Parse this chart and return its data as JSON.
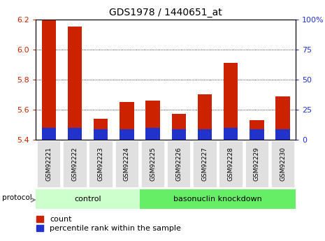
{
  "title": "GDS1978 / 1440651_at",
  "categories": [
    "GSM92221",
    "GSM92222",
    "GSM92223",
    "GSM92224",
    "GSM92225",
    "GSM92226",
    "GSM92227",
    "GSM92228",
    "GSM92229",
    "GSM92230"
  ],
  "count_values": [
    6.2,
    6.15,
    5.54,
    5.65,
    5.66,
    5.57,
    5.7,
    5.91,
    5.53,
    5.69
  ],
  "percentile_values": [
    10,
    10,
    9,
    9,
    10,
    9,
    9,
    10,
    9,
    9
  ],
  "ylim_left": [
    5.4,
    6.2
  ],
  "ylim_right": [
    0,
    100
  ],
  "yticks_left": [
    5.4,
    5.6,
    5.8,
    6.0,
    6.2
  ],
  "yticks_right": [
    0,
    25,
    50,
    75,
    100
  ],
  "bar_width": 0.55,
  "count_color": "#cc2200",
  "percentile_color": "#2233cc",
  "group_control_label": "control",
  "group_knockdown_label": "basonuclin knockdown",
  "group_control_color": "#ccffcc",
  "group_knockdown_color": "#66ee66",
  "protocol_label": "protocol",
  "background_color": "#ffffff",
  "tick_label_color_left": "#cc2200",
  "tick_label_color_right": "#2233cc",
  "legend_items": [
    "count",
    "percentile rank within the sample"
  ],
  "figsize": [
    4.65,
    3.45
  ],
  "dpi": 100
}
